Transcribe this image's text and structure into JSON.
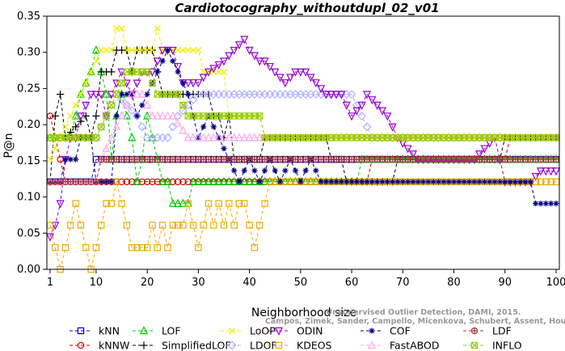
{
  "chart_data": {
    "type": "line",
    "title": "Cardiotocography_withoutdupl_02_v01",
    "xlabel": "Neighborhood size",
    "ylabel": "P@n",
    "xlim": [
      1,
      100
    ],
    "ylim": [
      0,
      0.35
    ],
    "xticks": [
      1,
      10,
      20,
      30,
      40,
      50,
      60,
      70,
      80,
      90,
      100
    ],
    "yticks": [
      0.0,
      0.05,
      0.1,
      0.15,
      0.2,
      0.25,
      0.3,
      0.35
    ],
    "ytick_labels": [
      "0.00",
      "0.05",
      "0.10",
      "0.15",
      "0.20",
      "0.25",
      "0.30",
      "0.35"
    ],
    "grid": false,
    "legend_position": "bottom",
    "watermark": [
      "Campos, Zimek, Sander, Campello, Micenkova, Schubert, Assent, Houle",
      "Unsupervised Outlier Detection, DAMI, 2015."
    ],
    "series": [
      {
        "name": "kNN",
        "color": "#0000cc",
        "marker": "square",
        "points": [
          [
            1,
            0.121
          ],
          [
            9,
            0.121
          ],
          [
            10,
            0.152
          ],
          [
            100,
            0.152
          ]
        ]
      },
      {
        "name": "kNNW",
        "color": "#cc0000",
        "marker": "circle",
        "points": [
          [
            1,
            0.212
          ],
          [
            2,
            0.182
          ],
          [
            3,
            0.152
          ],
          [
            4,
            0.121
          ],
          [
            60,
            0.121
          ],
          [
            63,
            0.121
          ],
          [
            64,
            0.152
          ],
          [
            90,
            0.152
          ],
          [
            91,
            0.182
          ],
          [
            100,
            0.182
          ]
        ]
      },
      {
        "name": "LOF",
        "color": "#00cc00",
        "marker": "triangle-up",
        "points": [
          [
            1,
            0.182
          ],
          [
            5,
            0.182
          ],
          [
            7,
            0.242
          ],
          [
            9,
            0.273
          ],
          [
            10,
            0.303
          ],
          [
            11,
            0.273
          ],
          [
            12,
            0.242
          ],
          [
            13,
            0.152
          ],
          [
            14,
            0.212
          ],
          [
            15,
            0.242
          ],
          [
            16,
            0.212
          ],
          [
            17,
            0.182
          ],
          [
            18,
            0.121
          ],
          [
            19,
            0.152
          ],
          [
            20,
            0.212
          ],
          [
            21,
            0.182
          ],
          [
            22,
            0.152
          ],
          [
            23,
            0.121
          ],
          [
            24,
            0.121
          ],
          [
            25,
            0.091
          ],
          [
            28,
            0.091
          ],
          [
            29,
            0.121
          ],
          [
            60,
            0.121
          ],
          [
            61,
            0.121
          ],
          [
            62,
            0.152
          ],
          [
            100,
            0.152
          ]
        ]
      },
      {
        "name": "SimplifiedLOF",
        "color": "#000000",
        "marker": "plus",
        "points": [
          [
            1,
            0.121
          ],
          [
            2,
            0.212
          ],
          [
            3,
            0.242
          ],
          [
            4,
            0.182
          ],
          [
            8,
            0.212
          ],
          [
            9,
            0.182
          ],
          [
            10,
            0.212
          ],
          [
            11,
            0.273
          ],
          [
            13,
            0.273
          ],
          [
            14,
            0.303
          ],
          [
            16,
            0.303
          ],
          [
            17,
            0.273
          ],
          [
            18,
            0.303
          ],
          [
            21,
            0.303
          ],
          [
            22,
            0.273
          ],
          [
            23,
            0.242
          ],
          [
            32,
            0.242
          ],
          [
            33,
            0.212
          ],
          [
            34,
            0.212
          ],
          [
            35,
            0.182
          ],
          [
            36,
            0.212
          ],
          [
            37,
            0.152
          ],
          [
            38,
            0.152
          ],
          [
            42,
            0.152
          ],
          [
            43,
            0.182
          ],
          [
            55,
            0.182
          ],
          [
            56,
            0.152
          ],
          [
            58,
            0.152
          ],
          [
            59,
            0.121
          ],
          [
            68,
            0.121
          ],
          [
            69,
            0.152
          ],
          [
            89,
            0.152
          ],
          [
            90,
            0.182
          ],
          [
            100,
            0.182
          ]
        ]
      },
      {
        "name": "LoOP",
        "color": "#eeee00",
        "marker": "x",
        "points": [
          [
            1,
            0.152
          ],
          [
            3,
            0.182
          ],
          [
            5,
            0.212
          ],
          [
            7,
            0.242
          ],
          [
            9,
            0.273
          ],
          [
            11,
            0.303
          ],
          [
            13,
            0.303
          ],
          [
            14,
            0.333
          ],
          [
            15,
            0.333
          ],
          [
            16,
            0.303
          ],
          [
            21,
            0.303
          ],
          [
            22,
            0.333
          ],
          [
            23,
            0.303
          ],
          [
            30,
            0.303
          ],
          [
            31,
            0.273
          ],
          [
            35,
            0.273
          ],
          [
            36,
            0.212
          ],
          [
            42,
            0.212
          ],
          [
            43,
            0.182
          ],
          [
            100,
            0.182
          ]
        ]
      },
      {
        "name": "LDOF",
        "color": "#b0b0ff",
        "marker": "diamond",
        "points": [
          [
            1,
            0.182
          ],
          [
            10,
            0.182
          ],
          [
            12,
            0.212
          ],
          [
            14,
            0.242
          ],
          [
            18,
            0.212
          ],
          [
            20,
            0.182
          ],
          [
            24,
            0.182
          ],
          [
            26,
            0.212
          ],
          [
            30,
            0.242
          ],
          [
            60,
            0.242
          ],
          [
            62,
            0.212
          ],
          [
            64,
            0.182
          ],
          [
            100,
            0.182
          ]
        ]
      },
      {
        "name": "ODIN",
        "color": "#9900cc",
        "marker": "triangle-down",
        "points": [
          [
            1,
            0.045
          ],
          [
            2,
            0.061
          ],
          [
            3,
            0.091
          ],
          [
            4,
            0.152
          ],
          [
            5,
            0.182
          ],
          [
            6,
            0.182
          ],
          [
            7,
            0.212
          ],
          [
            9,
            0.242
          ],
          [
            11,
            0.242
          ],
          [
            12,
            0.212
          ],
          [
            13,
            0.242
          ],
          [
            15,
            0.273
          ],
          [
            17,
            0.242
          ],
          [
            19,
            0.273
          ],
          [
            21,
            0.273
          ],
          [
            23,
            0.303
          ],
          [
            25,
            0.303
          ],
          [
            27,
            0.258
          ],
          [
            30,
            0.258
          ],
          [
            32,
            0.273
          ],
          [
            35,
            0.288
          ],
          [
            37,
            0.303
          ],
          [
            39,
            0.318
          ],
          [
            40,
            0.303
          ],
          [
            42,
            0.288
          ],
          [
            43,
            0.288
          ],
          [
            45,
            0.273
          ],
          [
            47,
            0.258
          ],
          [
            49,
            0.273
          ],
          [
            51,
            0.273
          ],
          [
            53,
            0.258
          ],
          [
            55,
            0.242
          ],
          [
            58,
            0.242
          ],
          [
            60,
            0.212
          ],
          [
            62,
            0.227
          ],
          [
            63,
            0.242
          ],
          [
            65,
            0.227
          ],
          [
            67,
            0.212
          ],
          [
            69,
            0.182
          ],
          [
            71,
            0.167
          ],
          [
            73,
            0.152
          ],
          [
            75,
            0.152
          ],
          [
            77,
            0.152
          ],
          [
            80,
            0.152
          ],
          [
            82,
            0.152
          ],
          [
            84,
            0.152
          ],
          [
            86,
            0.167
          ],
          [
            88,
            0.182
          ],
          [
            90,
            0.121
          ],
          [
            95,
            0.121
          ],
          [
            97,
            0.136
          ],
          [
            100,
            0.136
          ]
        ]
      },
      {
        "name": "KDEOS",
        "color": "#eeaa00",
        "marker": "square",
        "points": [
          [
            1,
            0.061
          ],
          [
            2,
            0.03
          ],
          [
            3,
            0.0
          ],
          [
            4,
            0.03
          ],
          [
            5,
            0.061
          ],
          [
            6,
            0.091
          ],
          [
            7,
            0.061
          ],
          [
            8,
            0.03
          ],
          [
            9,
            0.0
          ],
          [
            10,
            0.03
          ],
          [
            11,
            0.061
          ],
          [
            12,
            0.091
          ],
          [
            13,
            0.091
          ],
          [
            14,
            0.121
          ],
          [
            15,
            0.091
          ],
          [
            16,
            0.061
          ],
          [
            17,
            0.03
          ],
          [
            18,
            0.03
          ],
          [
            20,
            0.03
          ],
          [
            21,
            0.061
          ],
          [
            22,
            0.03
          ],
          [
            23,
            0.061
          ],
          [
            24,
            0.03
          ],
          [
            25,
            0.061
          ],
          [
            27,
            0.061
          ],
          [
            28,
            0.091
          ],
          [
            29,
            0.061
          ],
          [
            30,
            0.03
          ],
          [
            31,
            0.061
          ],
          [
            32,
            0.091
          ],
          [
            33,
            0.061
          ],
          [
            34,
            0.091
          ],
          [
            35,
            0.061
          ],
          [
            36,
            0.091
          ],
          [
            37,
            0.061
          ],
          [
            38,
            0.091
          ],
          [
            39,
            0.091
          ],
          [
            40,
            0.061
          ],
          [
            41,
            0.03
          ],
          [
            42,
            0.061
          ],
          [
            43,
            0.091
          ],
          [
            44,
            0.121
          ],
          [
            60,
            0.121
          ],
          [
            61,
            0.121
          ],
          [
            63,
            0.121
          ],
          [
            100,
            0.121
          ]
        ]
      },
      {
        "name": "COF",
        "color": "#000080",
        "marker": "asterisk",
        "points": [
          [
            1,
            0.121
          ],
          [
            3,
            0.121
          ],
          [
            4,
            0.152
          ],
          [
            6,
            0.152
          ],
          [
            7,
            0.182
          ],
          [
            9,
            0.182
          ],
          [
            10,
            0.121
          ],
          [
            13,
            0.121
          ],
          [
            14,
            0.212
          ],
          [
            15,
            0.242
          ],
          [
            17,
            0.242
          ],
          [
            18,
            0.212
          ],
          [
            20,
            0.242
          ],
          [
            22,
            0.273
          ],
          [
            24,
            0.303
          ],
          [
            26,
            0.273
          ],
          [
            28,
            0.242
          ],
          [
            30,
            0.182
          ],
          [
            32,
            0.212
          ],
          [
            34,
            0.182
          ],
          [
            36,
            0.152
          ],
          [
            38,
            0.121
          ],
          [
            40,
            0.152
          ],
          [
            42,
            0.121
          ],
          [
            44,
            0.152
          ],
          [
            46,
            0.121
          ],
          [
            48,
            0.152
          ],
          [
            50,
            0.121
          ],
          [
            52,
            0.152
          ],
          [
            54,
            0.121
          ],
          [
            56,
            0.121
          ],
          [
            58,
            0.121
          ],
          [
            60,
            0.121
          ],
          [
            95,
            0.121
          ],
          [
            96,
            0.091
          ],
          [
            100,
            0.091
          ]
        ]
      },
      {
        "name": "FastABOD",
        "color": "#ffaaee",
        "marker": "triangle-up",
        "points": [
          [
            1,
            0.121
          ],
          [
            10,
            0.121
          ],
          [
            11,
            0.152
          ],
          [
            13,
            0.182
          ],
          [
            15,
            0.212
          ],
          [
            17,
            0.242
          ],
          [
            19,
            0.242
          ],
          [
            21,
            0.212
          ],
          [
            25,
            0.212
          ],
          [
            28,
            0.182
          ],
          [
            60,
            0.182
          ],
          [
            100,
            0.182
          ]
        ]
      },
      {
        "name": "LDF",
        "color": "#aa3333",
        "marker": "circle-plus",
        "points": [
          [
            1,
            0.121
          ],
          [
            10,
            0.121
          ],
          [
            11,
            0.152
          ],
          [
            100,
            0.152
          ]
        ]
      },
      {
        "name": "INFLO",
        "color": "#99cc00",
        "marker": "square-x",
        "points": [
          [
            1,
            0.182
          ],
          [
            10,
            0.182
          ],
          [
            12,
            0.212
          ],
          [
            14,
            0.242
          ],
          [
            16,
            0.273
          ],
          [
            20,
            0.273
          ],
          [
            22,
            0.242
          ],
          [
            26,
            0.242
          ],
          [
            28,
            0.212
          ],
          [
            42,
            0.212
          ],
          [
            43,
            0.182
          ],
          [
            100,
            0.182
          ]
        ]
      }
    ]
  }
}
